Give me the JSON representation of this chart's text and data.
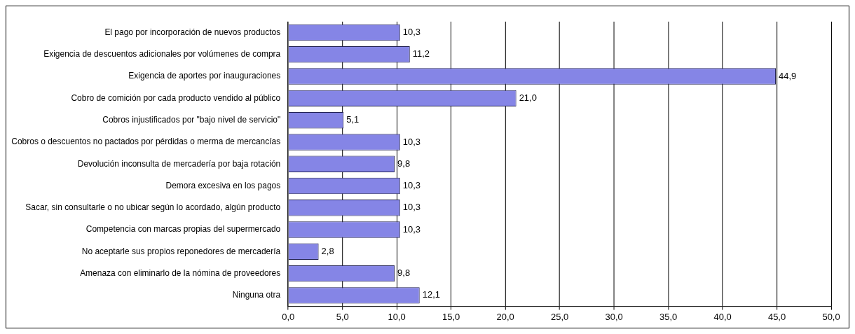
{
  "chart_data": {
    "type": "bar",
    "orientation": "horizontal",
    "categories": [
      "El pago por incorporación de nuevos productos",
      "Exigencia de descuentos adicionales por volúmenes de compra",
      "Exigencia de aportes por inauguraciones",
      "Cobro de comición por cada producto vendido al público",
      "Cobros injustificados por \"bajo nivel de servicio\"",
      "Cobros o descuentos no pactados por pérdidas o merma de mercancías",
      "Devolución inconsulta de mercadería por baja rotación",
      "Demora excesiva en los pagos",
      "Sacar, sin consultarle o no ubicar según lo acordado, algún producto",
      "Competencia con marcas propias del supermercado",
      "No aceptarle sus propios reponedores de mercadería",
      "Amenaza con eliminarlo de la nómina de proveedores",
      "Ninguna otra"
    ],
    "values": [
      10.3,
      11.2,
      44.9,
      21.0,
      5.1,
      10.3,
      9.8,
      10.3,
      10.3,
      10.3,
      2.8,
      9.8,
      12.1
    ],
    "value_labels": [
      "10,3",
      "11,2",
      "44,9",
      "21,0",
      "5,1",
      "10,3",
      "9,8",
      "10,3",
      "10,3",
      "10,3",
      "2,8",
      "9,8",
      "12,1"
    ],
    "color": "#8585e6",
    "xlim": [
      0,
      50
    ],
    "xticks": [
      {
        "value": 0,
        "label": "0,0"
      },
      {
        "value": 5,
        "label": "5,0"
      },
      {
        "value": 10,
        "label": "10,0"
      },
      {
        "value": 15,
        "label": "15,0"
      },
      {
        "value": 20,
        "label": "20,0"
      },
      {
        "value": 25,
        "label": "25,0"
      },
      {
        "value": 30,
        "label": "30,0"
      },
      {
        "value": 35,
        "label": "35,0"
      },
      {
        "value": 40,
        "label": "40,0"
      },
      {
        "value": 45,
        "label": "45,0"
      },
      {
        "value": 50,
        "label": "50,0"
      }
    ],
    "grid": "x",
    "legend": false
  }
}
